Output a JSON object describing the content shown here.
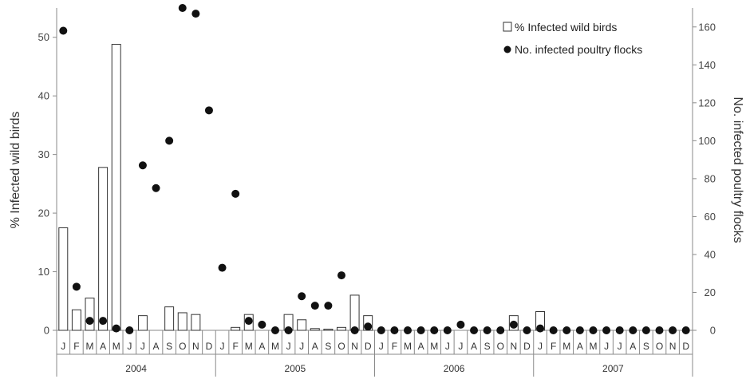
{
  "chart_data": {
    "type": "bar+scatter",
    "legend": {
      "position": "top-right",
      "entries": [
        "% Infected wild birds",
        "No. infected poultry flocks"
      ]
    },
    "y_left": {
      "label": "% Infected wild birds",
      "lim": [
        0,
        55
      ],
      "ticks": [
        0,
        10,
        20,
        30,
        40,
        50
      ]
    },
    "y_right": {
      "label": "No. infected poultry flocks",
      "lim": [
        0,
        170
      ],
      "ticks": [
        0,
        20,
        40,
        60,
        80,
        100,
        120,
        140,
        160
      ]
    },
    "years": [
      "2004",
      "2005",
      "2006",
      "2007"
    ],
    "months": [
      "J",
      "F",
      "M",
      "A",
      "M",
      "J",
      "J",
      "A",
      "S",
      "O",
      "N",
      "D",
      "J",
      "F",
      "M",
      "A",
      "M",
      "J",
      "J",
      "A",
      "S",
      "O",
      "N",
      "D",
      "J",
      "F",
      "M",
      "A",
      "M",
      "J",
      "J",
      "A",
      "S",
      "O",
      "N",
      "D",
      "J",
      "F",
      "M",
      "A",
      "M",
      "J",
      "J",
      "A",
      "S",
      "O",
      "N",
      "D"
    ],
    "series": [
      {
        "name": "% Infected wild birds",
        "type": "bar",
        "axis": "left",
        "color": "#ffffff",
        "values": [
          17.5,
          3.5,
          5.5,
          27.8,
          48.8,
          null,
          2.5,
          null,
          4.0,
          3.0,
          2.7,
          null,
          null,
          0.5,
          2.7,
          null,
          null,
          2.7,
          1.8,
          0.3,
          0.2,
          0.5,
          6.0,
          2.5,
          null,
          null,
          null,
          null,
          null,
          null,
          null,
          null,
          null,
          null,
          2.5,
          null,
          3.2,
          null,
          null,
          null,
          null,
          null,
          null,
          null,
          null,
          null,
          null,
          null
        ]
      },
      {
        "name": "No. infected poultry flocks",
        "type": "scatter",
        "axis": "right",
        "color": "#111111",
        "values": [
          158,
          23,
          5,
          5,
          1,
          0,
          87,
          75,
          100,
          170,
          167,
          116,
          33,
          72,
          5,
          3,
          0,
          0,
          18,
          13,
          13,
          29,
          0,
          2,
          0,
          0,
          0,
          0,
          0,
          0,
          3,
          0,
          0,
          0,
          3,
          0,
          1,
          0,
          0,
          0,
          0,
          0,
          0,
          0,
          0,
          0,
          0,
          0
        ]
      }
    ]
  }
}
